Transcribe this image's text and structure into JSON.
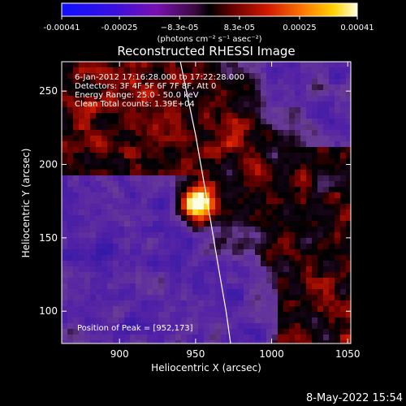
{
  "chart_data": {
    "type": "heatmap",
    "title": "Reconstructed RHESSI Image",
    "xlabel": "Heliocentric X (arcsec)",
    "ylabel": "Heliocentric Y (arcsec)",
    "xlim": [
      862,
      1052
    ],
    "ylim": [
      78,
      270
    ],
    "x_ticks": [
      900,
      950,
      1000,
      1050
    ],
    "y_ticks": [
      100,
      150,
      200,
      250
    ],
    "colorbar": {
      "range": [
        -0.00041,
        0.00041
      ],
      "tick_values": [
        -0.00041,
        -0.00025,
        -8.3e-05,
        8.3e-05,
        0.00025,
        0.00041
      ],
      "tick_labels": [
        "-0.00041",
        "-0.00025",
        "−8.3e-05",
        "8.3e-05",
        "0.00025",
        "0.00041"
      ],
      "label": "(photons cm⁻² s⁻¹ asec⁻²)"
    },
    "info_lines": [
      "6-Jan-2012 17:16:28.000 to 17:22:28.000",
      "Detectors: 3F 4F 5F 6F 7F 8F, Att 0",
      "Energy Range: 25.0 - 50.0 keV",
      "Clean    Total counts: 1.39E+04"
    ],
    "peak_label": "Position of Peak = [952,173]",
    "peak": [
      952,
      173
    ],
    "limb": [
      [
        940,
        270
      ],
      [
        950,
        220
      ],
      [
        958,
        173
      ],
      [
        965,
        130
      ],
      [
        970,
        100
      ],
      [
        973,
        78
      ]
    ],
    "grid": false,
    "legend": "none"
  },
  "footer": {
    "date": "8-May-2022 15:54"
  }
}
